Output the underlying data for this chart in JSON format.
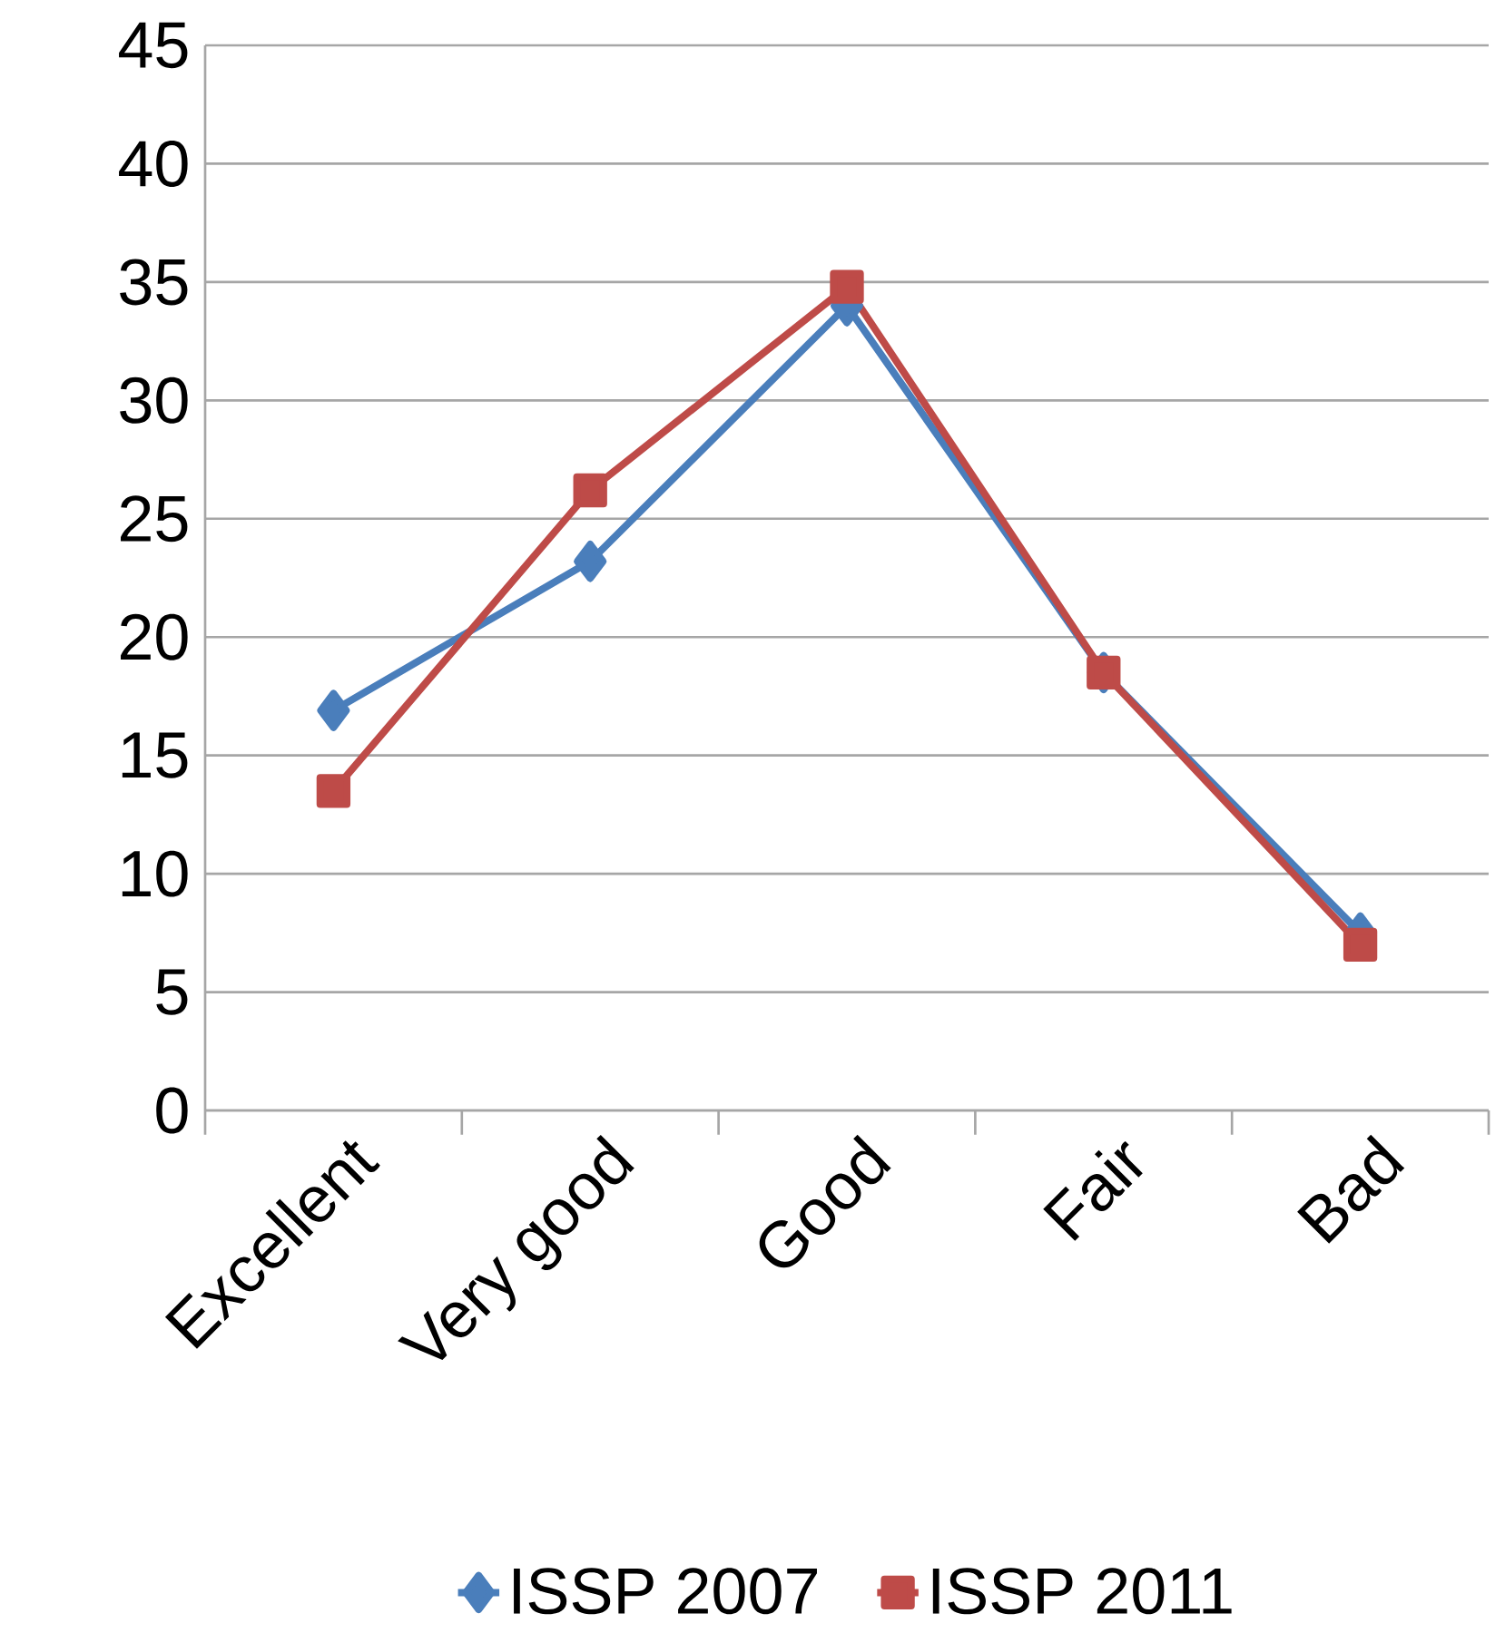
{
  "chart_data": {
    "type": "line",
    "categories": [
      "Excellent",
      "Very good",
      "Good",
      "Fair",
      "Bad"
    ],
    "series": [
      {
        "name": "ISSP 2007",
        "color": "#4a7ebb",
        "marker": "diamond",
        "values": [
          16.9,
          23.2,
          34.0,
          18.5,
          7.5
        ]
      },
      {
        "name": "ISSP 2011",
        "color": "#be4b48",
        "marker": "square",
        "values": [
          13.5,
          26.2,
          34.8,
          18.5,
          7.0
        ]
      }
    ],
    "ylim": [
      0,
      45
    ],
    "yticks": [
      0,
      5,
      10,
      15,
      20,
      25,
      30,
      35,
      40,
      45
    ],
    "grid": "y",
    "legend": "bottom",
    "line_style": "solid"
  }
}
